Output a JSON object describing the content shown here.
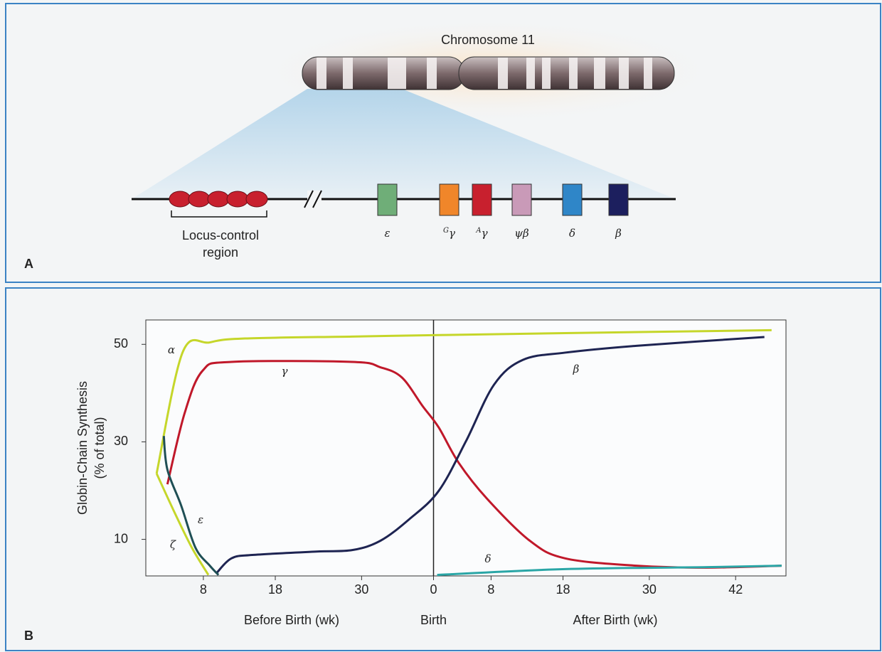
{
  "panel_a": {
    "label": "A",
    "title": "Chromosome 11",
    "lcr_label": [
      "Locus-control",
      "region"
    ],
    "genes": [
      {
        "symbol": "ε",
        "color": "#6fae78"
      },
      {
        "prefix": "G",
        "symbol": "γ",
        "color": "#f0862a"
      },
      {
        "prefix": "A",
        "symbol": "γ",
        "color": "#c8202e"
      },
      {
        "symbol": "ψβ",
        "color": "#c99ab8"
      },
      {
        "symbol": "δ",
        "color": "#2f86c8"
      },
      {
        "symbol": "β",
        "color": "#1c1f5e"
      }
    ]
  },
  "chart_data": {
    "type": "line",
    "panel_label": "B",
    "y_label": [
      "Globin-Chain Synthesis",
      "(% of total)"
    ],
    "x_group_labels": [
      "Before Birth (wk)",
      "Birth",
      "After Birth (wk)"
    ],
    "xlim": [
      0,
      89
    ],
    "xticks": [
      8,
      18,
      30,
      {
        "value": 40,
        "label": "0"
      },
      {
        "value": 48,
        "label": "8"
      },
      {
        "value": 58,
        "label": "18"
      },
      {
        "value": 70,
        "label": "30"
      },
      {
        "value": 82,
        "label": "42"
      }
    ],
    "ylim": [
      2.5,
      55
    ],
    "yticks": [
      10,
      30,
      50
    ],
    "series": [
      {
        "name": "α",
        "color": "#c5d62a",
        "x": [
          1.5,
          5.1,
          8.9,
          13.8,
          28.7,
          40.7,
          58.3,
          87
        ],
        "values": [
          23.5,
          48.3,
          50.4,
          51.2,
          51.6,
          51.9,
          52.3,
          52.9
        ]
      },
      {
        "name": "γ",
        "color": "#c0182a",
        "x": [
          3.0,
          5.4,
          7.9,
          11.9,
          28.7,
          32.6,
          35.6,
          38.5,
          40.7,
          43.5,
          47.4,
          53.4,
          58.3,
          68.2,
          78,
          88.4
        ],
        "values": [
          21.3,
          35.9,
          44.6,
          46.4,
          46.4,
          45.3,
          43.2,
          37.3,
          33,
          25.7,
          18.4,
          9.7,
          6.1,
          4.6,
          4.2,
          4.6
        ]
      },
      {
        "name": "β",
        "color": "#1e2452",
        "x": [
          9.9,
          11.9,
          14.8,
          23.7,
          28.7,
          32.6,
          36.6,
          40.7,
          44.5,
          48.4,
          52.4,
          58.3,
          68.2,
          86
        ],
        "values": [
          3.2,
          6.1,
          6.8,
          7.5,
          7.8,
          9.7,
          14.1,
          19.9,
          30.1,
          41.7,
          46.8,
          48.3,
          49.7,
          51.5
        ]
      },
      {
        "name": "ε",
        "color": "#1f4f55",
        "x": [
          2.5,
          3.0,
          4.9,
          6.9,
          8.9,
          10.1
        ],
        "values": [
          31.2,
          24.3,
          17,
          8.3,
          4.6,
          2.7
        ]
      },
      {
        "name": "ζ",
        "color": "#c5d62a",
        "x": [
          1.5,
          4,
          6.4,
          8.7
        ],
        "values": [
          23.5,
          15.5,
          8.3,
          2.7
        ]
      },
      {
        "name": "δ",
        "color": "#2aa6a6",
        "x": [
          40.5,
          58.3,
          78,
          88.4
        ],
        "values": [
          2.7,
          3.9,
          4.3,
          4.6
        ]
      }
    ]
  }
}
